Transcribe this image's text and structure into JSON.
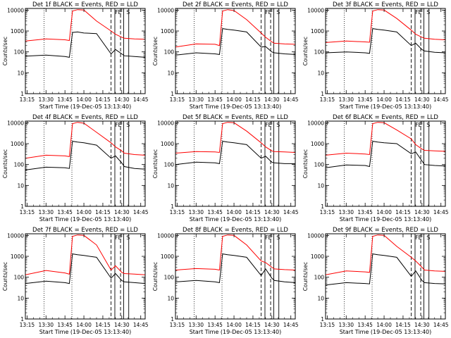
{
  "chart_data": {
    "type": "line",
    "layout": "3x3 grid",
    "shared": {
      "title_suffix": " BLACK = Events, RED = LLD",
      "xlabel": "Start Time (19-Dec-05 13:13:40)",
      "ylabel": "Counts/sec",
      "x_ticks": [
        "13:15",
        "13:30",
        "13:45",
        "14:00",
        "14:15",
        "14:30",
        "14:45"
      ],
      "x_tick_minutes": [
        15,
        30,
        45,
        60,
        75,
        90,
        105
      ],
      "xlim_minutes": [
        13.67,
        108.5
      ],
      "y_ticks": [
        "10000",
        "1000",
        "100",
        "10",
        "1"
      ],
      "ylim": [
        1,
        12000
      ],
      "yscale": "log",
      "event_markers": [
        "F",
        "E",
        "S"
      ],
      "dotted_lines_minutes": [
        28.5,
        50.5
      ],
      "dashed_lines_minutes": [
        81.5,
        89.0
      ],
      "solid_lines_minutes": [
        84.5,
        91.5,
        95.5
      ],
      "series_colors": {
        "Events": "#000000",
        "LLD": "#ff0000"
      }
    },
    "panels": [
      {
        "title": "Det 1f",
        "series": [
          {
            "name": "Events",
            "x": [
              13.67,
              30,
              45,
              48.5,
              51,
              55,
              60,
              70,
              81.5,
              85,
              90,
              92,
              100,
              108.5
            ],
            "values": [
              62,
              70,
              60,
              55,
              850,
              900,
              800,
              750,
              80,
              130,
              80,
              65,
              60,
              55
            ]
          },
          {
            "name": "LLD",
            "x": [
              13.67,
              30,
              45,
              48.5,
              51,
              55,
              60,
              70,
              81.5,
              85,
              90,
              92,
              100,
              108.5
            ],
            "values": [
              330,
              420,
              380,
              350,
              9000,
              10500,
              10000,
              3000,
              1000,
              700,
              500,
              450,
              420,
              400
            ]
          }
        ]
      },
      {
        "title": "Det 2f",
        "series": [
          {
            "name": "Events",
            "x": [
              13.67,
              30,
              45,
              48.5,
              51,
              55,
              60,
              70,
              81.5,
              85,
              90,
              92,
              100,
              108.5
            ],
            "values": [
              70,
              90,
              80,
              75,
              1300,
              1200,
              1100,
              900,
              170,
              180,
              100,
              90,
              80,
              75
            ]
          },
          {
            "name": "LLD",
            "x": [
              13.67,
              30,
              45,
              48.5,
              51,
              55,
              60,
              70,
              81.5,
              85,
              90,
              92,
              100,
              108.5
            ],
            "values": [
              170,
              240,
              230,
              200,
              9000,
              10500,
              9500,
              3500,
              800,
              500,
              300,
              260,
              240,
              230
            ]
          }
        ]
      },
      {
        "title": "Det 3f",
        "series": [
          {
            "name": "Events",
            "x": [
              13.67,
              30,
              45,
              48.5,
              51,
              55,
              60,
              70,
              81.5,
              85,
              90,
              92,
              100,
              108.5
            ],
            "values": [
              90,
              100,
              90,
              85,
              1300,
              1200,
              1100,
              900,
              200,
              260,
              130,
              110,
              95,
              90
            ]
          },
          {
            "name": "LLD",
            "x": [
              13.67,
              30,
              45,
              48.5,
              51,
              55,
              60,
              70,
              81.5,
              85,
              90,
              92,
              100,
              108.5
            ],
            "values": [
              280,
              330,
              300,
              290,
              9000,
              10500,
              10000,
              4000,
              1100,
              700,
              500,
              450,
              400,
              380
            ]
          }
        ]
      },
      {
        "title": "Det 4f",
        "series": [
          {
            "name": "Events",
            "x": [
              13.67,
              30,
              45,
              48.5,
              51,
              55,
              60,
              70,
              81.5,
              85,
              90,
              92,
              100,
              108.5
            ],
            "values": [
              55,
              75,
              70,
              65,
              1300,
              1200,
              1100,
              850,
              200,
              260,
              120,
              80,
              65,
              60
            ]
          },
          {
            "name": "LLD",
            "x": [
              13.67,
              30,
              45,
              48.5,
              51,
              55,
              60,
              70,
              81.5,
              85,
              90,
              92,
              100,
              108.5
            ],
            "values": [
              200,
              280,
              260,
              240,
              9000,
              10500,
              9500,
              3500,
              1100,
              700,
              450,
              350,
              300,
              280
            ]
          }
        ]
      },
      {
        "title": "Det 5f",
        "series": [
          {
            "name": "Events",
            "x": [
              13.67,
              30,
              45,
              48.5,
              51,
              55,
              60,
              70,
              81.5,
              85,
              90,
              92,
              100,
              108.5
            ],
            "values": [
              100,
              130,
              120,
              110,
              1300,
              1200,
              1100,
              900,
              200,
              250,
              130,
              120,
              110,
              110
            ]
          },
          {
            "name": "LLD",
            "x": [
              13.67,
              30,
              45,
              48.5,
              51,
              55,
              60,
              70,
              81.5,
              85,
              90,
              92,
              100,
              108.5
            ],
            "values": [
              350,
              420,
              400,
              380,
              9000,
              10500,
              10000,
              4000,
              1100,
              700,
              450,
              420,
              400,
              380
            ]
          }
        ]
      },
      {
        "title": "Det 6f",
        "series": [
          {
            "name": "Events",
            "x": [
              13.67,
              30,
              45,
              48.5,
              51,
              55,
              60,
              70,
              81.5,
              85,
              90,
              92,
              100,
              108.5
            ],
            "values": [
              70,
              95,
              90,
              80,
              1300,
              1200,
              1100,
              1000,
              330,
              400,
              150,
              100,
              90,
              85
            ]
          },
          {
            "name": "LLD",
            "x": [
              13.67,
              30,
              45,
              48.5,
              51,
              55,
              60,
              70,
              81.5,
              85,
              90,
              92,
              100,
              108.5
            ],
            "values": [
              280,
              350,
              320,
              300,
              9000,
              10500,
              10000,
              4500,
              1700,
              900,
              550,
              480,
              450,
              430
            ]
          }
        ]
      },
      {
        "title": "Det 7f",
        "series": [
          {
            "name": "Events",
            "x": [
              13.67,
              30,
              45,
              48.5,
              51,
              55,
              60,
              70,
              81.5,
              85,
              90,
              92,
              100,
              108.5
            ],
            "values": [
              50,
              65,
              55,
              50,
              1300,
              1200,
              1100,
              900,
              90,
              150,
              70,
              60,
              55,
              50
            ]
          },
          {
            "name": "LLD",
            "x": [
              13.67,
              30,
              45,
              48.5,
              51,
              55,
              60,
              70,
              81.5,
              85,
              90,
              92,
              100,
              108.5
            ],
            "values": [
              130,
              210,
              160,
              140,
              9000,
              10500,
              10000,
              3500,
              220,
              350,
              170,
              150,
              140,
              130
            ]
          }
        ]
      },
      {
        "title": "Det 8f",
        "series": [
          {
            "name": "Events",
            "x": [
              13.67,
              30,
              45,
              48.5,
              51,
              55,
              60,
              70,
              81.5,
              85,
              90,
              92,
              100,
              108.5
            ],
            "values": [
              60,
              70,
              60,
              55,
              1300,
              1200,
              1100,
              900,
              120,
              250,
              90,
              70,
              60,
              55
            ]
          },
          {
            "name": "LLD",
            "x": [
              13.67,
              30,
              45,
              48.5,
              51,
              55,
              60,
              70,
              81.5,
              85,
              90,
              92,
              100,
              108.5
            ],
            "values": [
              220,
              260,
              240,
              220,
              9000,
              10500,
              10000,
              3500,
              600,
              500,
              300,
              250,
              230,
              220
            ]
          }
        ]
      },
      {
        "title": "Det 9f",
        "series": [
          {
            "name": "Events",
            "x": [
              13.67,
              30,
              45,
              48.5,
              51,
              55,
              60,
              70,
              81.5,
              85,
              90,
              92,
              100,
              108.5
            ],
            "values": [
              42,
              55,
              50,
              48,
              1300,
              1200,
              1100,
              900,
              110,
              200,
              70,
              55,
              50,
              48
            ]
          },
          {
            "name": "LLD",
            "x": [
              13.67,
              30,
              45,
              48.5,
              51,
              55,
              60,
              70,
              81.5,
              85,
              90,
              92,
              100,
              108.5
            ],
            "values": [
              130,
              200,
              180,
              170,
              9000,
              10500,
              10000,
              3000,
              900,
              600,
              300,
              220,
              200,
              190
            ]
          }
        ]
      }
    ]
  }
}
